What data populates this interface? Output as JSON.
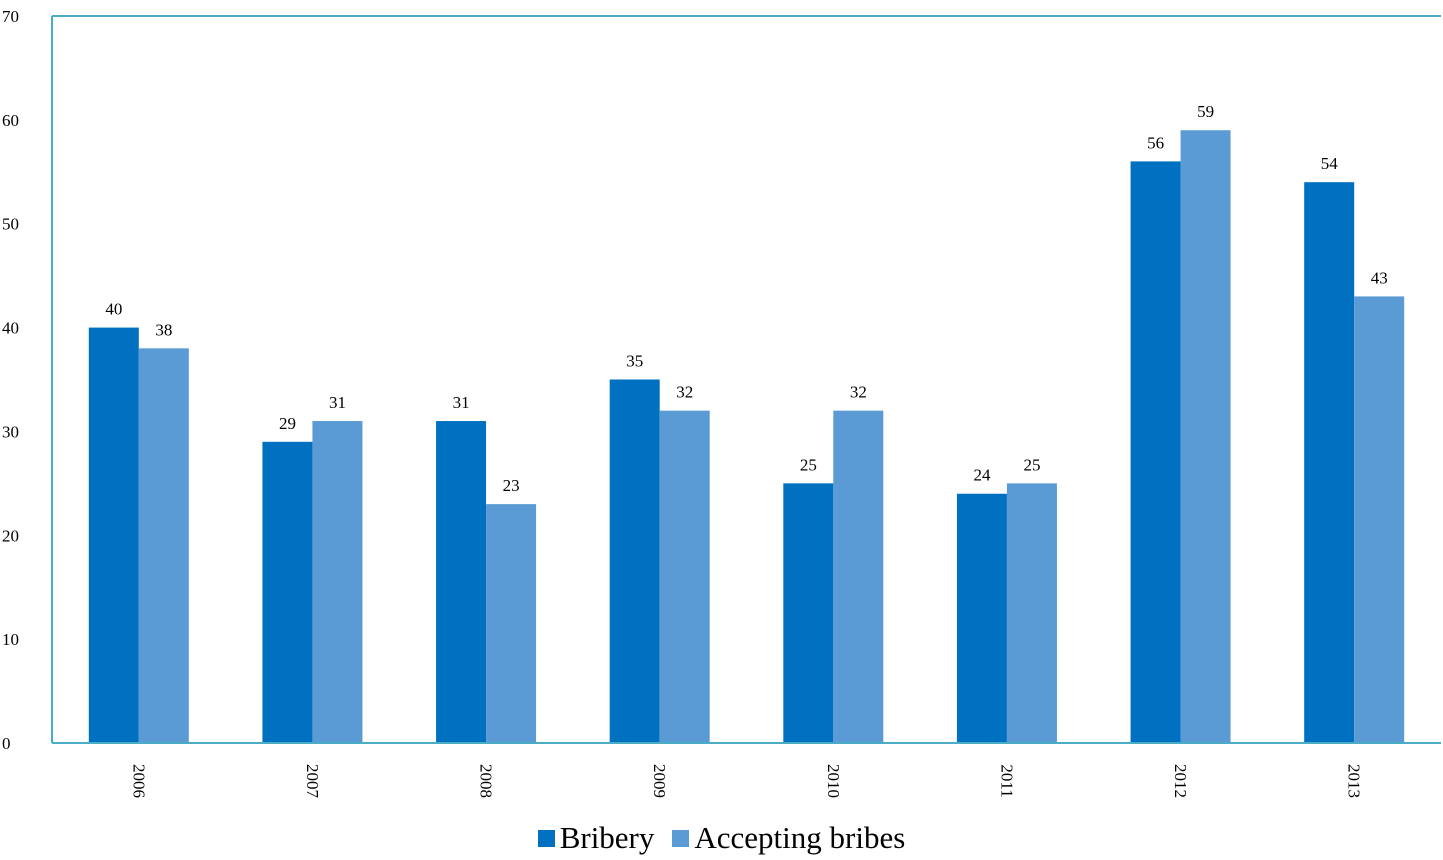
{
  "chart_data": {
    "type": "bar",
    "categories": [
      "2006",
      "2007",
      "2008",
      "2009",
      "2010",
      "2011",
      "2012",
      "2013"
    ],
    "series": [
      {
        "name": "Bribery",
        "values": [
          40,
          29,
          31,
          35,
          25,
          24,
          56,
          54
        ],
        "color": "#0070C0"
      },
      {
        "name": "Accepting bribes",
        "values": [
          38,
          31,
          23,
          32,
          32,
          25,
          59,
          43
        ],
        "color": "#5B9BD5"
      }
    ],
    "ylim": [
      0,
      70
    ],
    "yticks": [
      "0",
      "10",
      "20",
      "30",
      "40",
      "50",
      "60",
      "70"
    ],
    "grid": false,
    "legend_position": "bottom",
    "axis_color": "#4BACC6"
  }
}
